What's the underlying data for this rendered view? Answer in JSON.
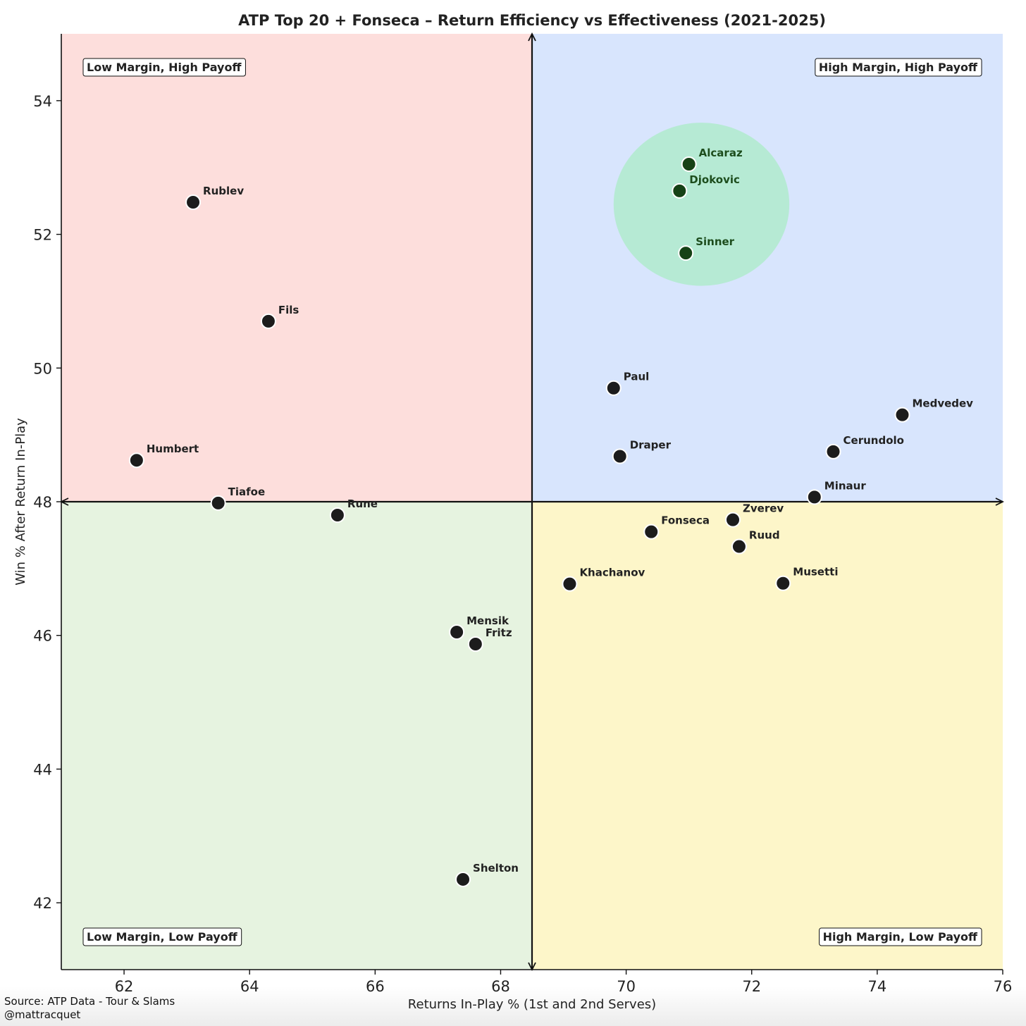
{
  "chart_data": {
    "type": "scatter",
    "title": "ATP Top 20 + Fonseca – Return Efficiency vs Effectiveness (2021-2025)",
    "xlabel": "Returns In-Play % (1st and 2nd Serves)",
    "ylabel": "Win % After Return In-Play",
    "xlim": [
      61,
      76
    ],
    "ylim": [
      41,
      55
    ],
    "x_ticks": [
      62,
      64,
      66,
      68,
      70,
      72,
      74,
      76
    ],
    "y_ticks": [
      42,
      44,
      46,
      48,
      50,
      52,
      54
    ],
    "grid": false,
    "x_divider": 68.5,
    "y_divider": 48,
    "quadrants": {
      "top_left": {
        "label": "Low Margin, High Payoff",
        "color": "#fddedc"
      },
      "top_right": {
        "label": "High Margin, High Payoff",
        "color": "#d8e5fd"
      },
      "bottom_left": {
        "label": "Low Margin, Low Payoff",
        "color": "#e6f3e0"
      },
      "bottom_right": {
        "label": "High Margin, Low Payoff",
        "color": "#fdf6c9"
      }
    },
    "highlight": {
      "center": [
        71.2,
        52.45
      ],
      "radius_x": 1.4,
      "radius_y": 1.22,
      "color": "#b6ead4"
    },
    "points": [
      {
        "name": "Alcaraz",
        "x": 71.0,
        "y": 53.05,
        "highlight": true
      },
      {
        "name": "Djokovic",
        "x": 70.85,
        "y": 52.65,
        "highlight": true
      },
      {
        "name": "Sinner",
        "x": 70.95,
        "y": 51.72,
        "highlight": true
      },
      {
        "name": "Rublev",
        "x": 63.1,
        "y": 52.48,
        "highlight": false
      },
      {
        "name": "Fils",
        "x": 64.3,
        "y": 50.7,
        "highlight": false
      },
      {
        "name": "Humbert",
        "x": 62.2,
        "y": 48.62,
        "highlight": false
      },
      {
        "name": "Tiafoe",
        "x": 63.5,
        "y": 47.98,
        "highlight": false
      },
      {
        "name": "Rune",
        "x": 65.4,
        "y": 47.8,
        "highlight": false
      },
      {
        "name": "Paul",
        "x": 69.8,
        "y": 49.7,
        "highlight": false
      },
      {
        "name": "Draper",
        "x": 69.9,
        "y": 48.68,
        "highlight": false
      },
      {
        "name": "Medvedev",
        "x": 74.4,
        "y": 49.3,
        "highlight": false
      },
      {
        "name": "Cerundolo",
        "x": 73.3,
        "y": 48.75,
        "highlight": false
      },
      {
        "name": "Minaur",
        "x": 73.0,
        "y": 48.07,
        "highlight": false
      },
      {
        "name": "Zverev",
        "x": 71.7,
        "y": 47.73,
        "highlight": false
      },
      {
        "name": "Fonseca",
        "x": 70.4,
        "y": 47.55,
        "highlight": false
      },
      {
        "name": "Ruud",
        "x": 71.8,
        "y": 47.33,
        "highlight": false
      },
      {
        "name": "Khachanov",
        "x": 69.1,
        "y": 46.77,
        "highlight": false
      },
      {
        "name": "Musetti",
        "x": 72.5,
        "y": 46.78,
        "highlight": false
      },
      {
        "name": "Mensik",
        "x": 67.3,
        "y": 46.05,
        "highlight": false
      },
      {
        "name": "Fritz",
        "x": 67.6,
        "y": 45.87,
        "highlight": false
      },
      {
        "name": "Shelton",
        "x": 67.4,
        "y": 42.35,
        "highlight": false
      }
    ]
  },
  "footer": {
    "source": "Source: ATP Data - Tour & Slams",
    "handle": "@mattracquet"
  }
}
